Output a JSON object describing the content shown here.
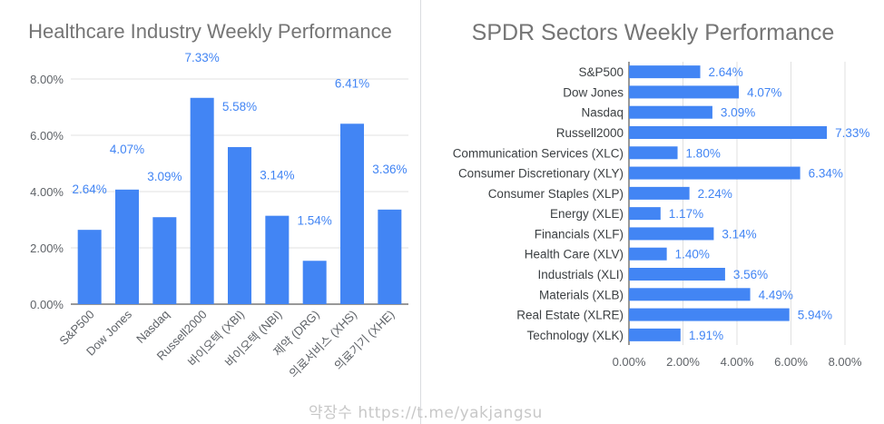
{
  "chart_data": [
    {
      "type": "bar",
      "title": "Healthcare Industry Weekly Performance",
      "categories": [
        "S&P500",
        "Dow Jones",
        "Nasdaq",
        "Russell2000",
        "바이오텍 (XBI)",
        "바이오텍 (NBI)",
        "제약 (DRG)",
        "의료서비스 (XHS)",
        "의료기기 (XHE)"
      ],
      "values": [
        2.64,
        4.07,
        3.09,
        7.33,
        5.58,
        3.14,
        1.54,
        6.41,
        3.36
      ],
      "data_labels": [
        "2.64%",
        "4.07%",
        "3.09%",
        "7.33%",
        "5.58%",
        "3.14%",
        "1.54%",
        "6.41%",
        "3.36%"
      ],
      "ylim": [
        0,
        8
      ],
      "y_ticks": [
        "0.00%",
        "2.00%",
        "4.00%",
        "6.00%",
        "8.00%"
      ],
      "xlabel": "",
      "ylabel": "",
      "grid": true,
      "bar_color": "#4285f4"
    },
    {
      "type": "bar",
      "orientation": "horizontal",
      "title": "SPDR Sectors Weekly Performance",
      "categories": [
        "S&P500",
        "Dow Jones",
        "Nasdaq",
        "Russell2000",
        "Communication Services (XLC)",
        "Consumer Discretionary (XLY)",
        "Consumer Staples (XLP)",
        "Energy (XLE)",
        "Financials (XLF)",
        "Health Care (XLV)",
        "Industrials (XLI)",
        "Materials (XLB)",
        "Real Estate (XLRE)",
        "Technology (XLK)"
      ],
      "values": [
        2.64,
        4.07,
        3.09,
        7.33,
        1.8,
        6.34,
        2.24,
        1.17,
        3.14,
        1.4,
        3.56,
        4.49,
        5.94,
        1.91
      ],
      "data_labels": [
        "2.64%",
        "4.07%",
        "3.09%",
        "7.33%",
        "1.80%",
        "6.34%",
        "2.24%",
        "1.17%",
        "3.14%",
        "1.40%",
        "3.56%",
        "4.49%",
        "5.94%",
        "1.91%"
      ],
      "xlim": [
        0,
        8
      ],
      "x_ticks": [
        "0.00%",
        "2.00%",
        "4.00%",
        "6.00%",
        "8.00%"
      ],
      "xlabel": "",
      "ylabel": "",
      "grid": true,
      "bar_color": "#4285f4"
    }
  ],
  "watermark": "약장수 https://t.me/yakjangsu",
  "colors": {
    "bar": "#4285f4",
    "label": "#4285f4",
    "title": "#757575",
    "tick": "#5f6368",
    "grid": "#e0e0e0"
  }
}
